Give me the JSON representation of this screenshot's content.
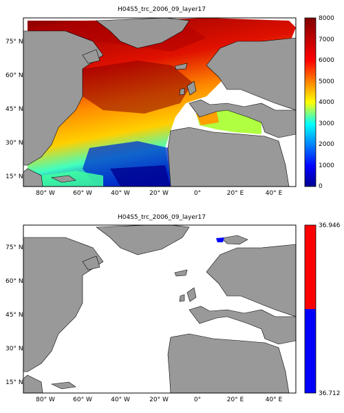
{
  "maps": [
    {
      "title": "H04S5_trc_2006_09_layer17",
      "lon_ticks": [
        "80° W",
        "60° W",
        "40° W",
        "20° W",
        "0°",
        "20° E",
        "40° E"
      ],
      "lat_ticks": [
        "75° N",
        "60° N",
        "45° N",
        "30° N",
        "15° N"
      ],
      "colorbar": {
        "range": [
          0,
          8000
        ],
        "ticks": [
          "8000",
          "7000",
          "6000",
          "5000",
          "4000",
          "3000",
          "2000",
          "1000",
          "0"
        ],
        "colormap": [
          "#00008f",
          "#0000ff",
          "#00ffff",
          "#ffff00",
          "#ff0000",
          "#800000"
        ]
      }
    },
    {
      "title": "H04S5_trc_2006_09_layer17",
      "lon_ticks": [
        "80° W",
        "60° W",
        "40° W",
        "20° W",
        "0°",
        "20° E",
        "40° E"
      ],
      "lat_ticks": [
        "75° N",
        "60° N",
        "45° N",
        "30° N",
        "15° N"
      ],
      "colorbar": {
        "range": [
          36.712,
          36.946
        ],
        "ticks": [
          "36.946",
          "36.712"
        ],
        "colors": [
          "#ff0000",
          "#0000ff"
        ]
      }
    }
  ],
  "colors": {
    "land": "#999999",
    "ocean_nodata": "#ffffff",
    "coast": "#000000"
  }
}
